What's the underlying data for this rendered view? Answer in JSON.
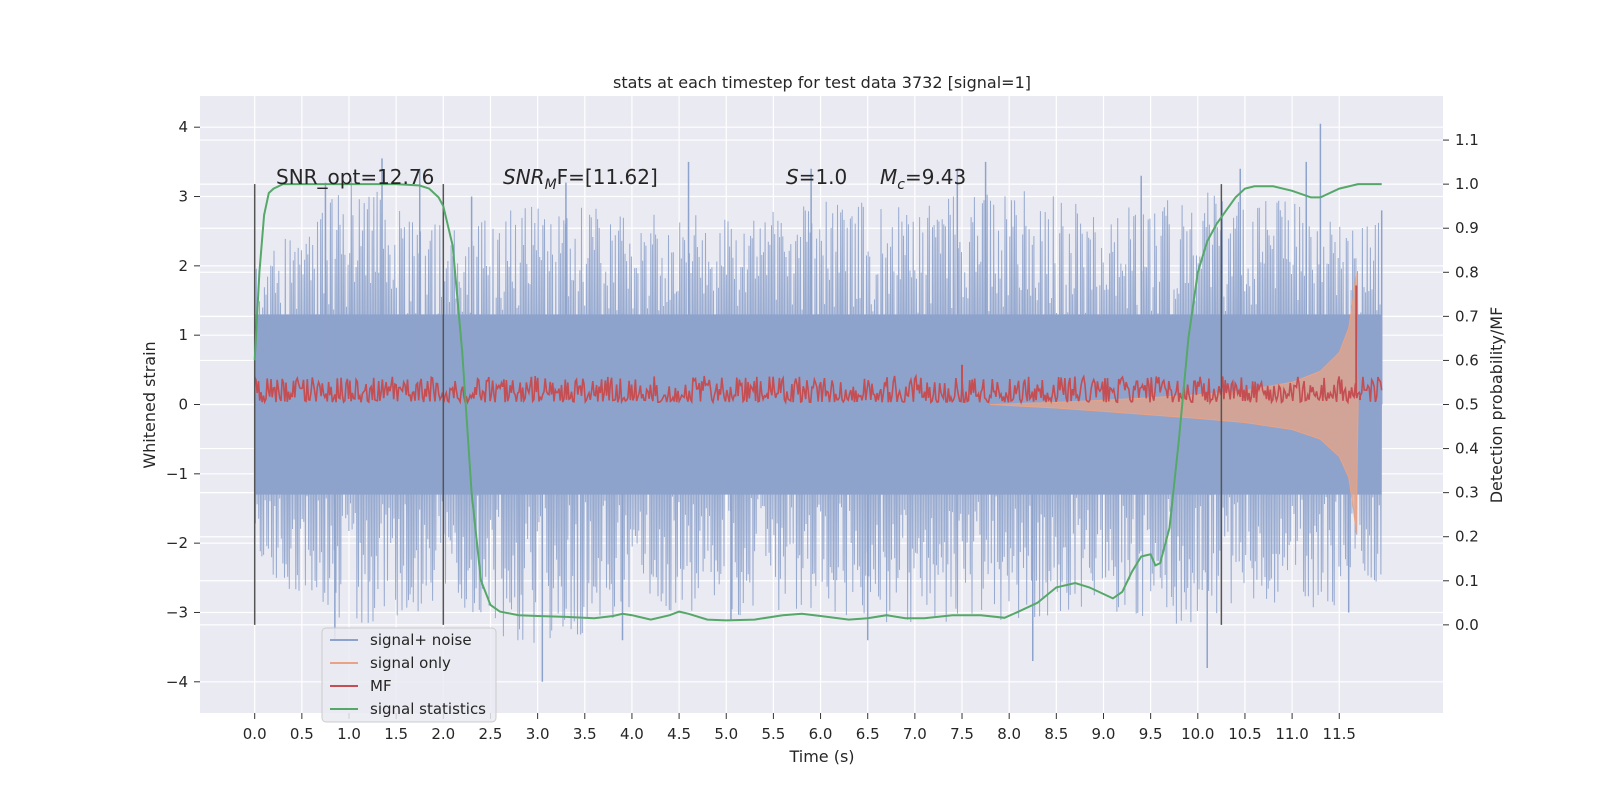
{
  "chart_data": {
    "type": "line",
    "title": "stats at each timestep for test data 3732 [signal=1]",
    "xlabel": "Time (s)",
    "ylabel_left": "Whitened strain",
    "ylabel_right": "Detection probability/MF",
    "xlim": [
      -0.58,
      12.6
    ],
    "ylim_left": [
      -4.45,
      4.45
    ],
    "ylim_right": [
      -0.2,
      1.2
    ],
    "x_ticks": [
      0.0,
      0.5,
      1.0,
      1.5,
      2.0,
      2.5,
      3.0,
      3.5,
      4.0,
      4.5,
      5.0,
      5.5,
      6.0,
      6.5,
      7.0,
      7.5,
      8.0,
      8.5,
      9.0,
      9.5,
      10.0,
      10.5,
      11.0,
      11.5
    ],
    "x_tick_labels": [
      "0.0",
      "0.5",
      "1.0",
      "1.5",
      "2.0",
      "2.5",
      "3.0",
      "3.5",
      "4.0",
      "4.5",
      "5.0",
      "5.5",
      "6.0",
      "6.5",
      "7.0",
      "7.5",
      "8.0",
      "8.5",
      "9.0",
      "9.5",
      "10.0",
      "10.5",
      "11.0",
      "11.5"
    ],
    "y_left_ticks": [
      -4,
      -3,
      -2,
      -1,
      0,
      1,
      2,
      3,
      4
    ],
    "y_left_tick_labels": [
      "−4",
      "−3",
      "−2",
      "−1",
      "0",
      "1",
      "2",
      "3",
      "4"
    ],
    "y_right_ticks": [
      0.0,
      0.1,
      0.2,
      0.3,
      0.4,
      0.5,
      0.6,
      0.7,
      0.8,
      0.9,
      1.0,
      1.1
    ],
    "y_right_tick_labels": [
      "0.0",
      "0.1",
      "0.2",
      "0.3",
      "0.4",
      "0.5",
      "0.6",
      "0.7",
      "0.8",
      "0.9",
      "1.0",
      "1.1"
    ],
    "grid": true,
    "legend_position": "lower-left",
    "vlines_x": [
      0.0,
      2.0,
      10.25
    ],
    "annotations": {
      "snr_opt": "SNR_opt=12.76",
      "snr_mf_main": "SNR",
      "snr_mf_sub": "M",
      "snr_mf_rest": "F=[11.62]",
      "s_main": "S",
      "s_rest": "=1.0",
      "mc_main": "M",
      "mc_sub": "c",
      "mc_rest": "=9.43"
    },
    "series": [
      {
        "name": "signal+ noise",
        "axis": "left",
        "color": "#8ea3cc",
        "envelope_x": [
          0.0,
          1.0,
          2.0,
          3.0,
          4.0,
          5.0,
          6.0,
          7.0,
          8.0,
          9.0,
          10.0,
          10.5,
          11.0,
          11.5,
          11.7,
          11.95
        ],
        "upper": [
          2.0,
          3.3,
          2.6,
          2.9,
          2.8,
          2.7,
          3.0,
          2.9,
          3.2,
          2.8,
          3.1,
          2.9,
          3.0,
          2.6,
          2.5,
          2.8
        ],
        "lower": [
          -2.3,
          -3.3,
          -2.9,
          -3.6,
          -3.0,
          -3.1,
          -3.0,
          -3.2,
          -3.1,
          -3.0,
          -3.3,
          -2.8,
          -2.9,
          -3.0,
          -2.6,
          -2.6
        ],
        "spikes": [
          [
            0.75,
            3.2
          ],
          [
            0.85,
            -3.4
          ],
          [
            1.35,
            3.55
          ],
          [
            1.75,
            3.4
          ],
          [
            2.3,
            3.0
          ],
          [
            3.05,
            -4.0
          ],
          [
            3.3,
            3.2
          ],
          [
            3.9,
            -3.4
          ],
          [
            4.6,
            3.5
          ],
          [
            5.05,
            -3.1
          ],
          [
            5.9,
            3.4
          ],
          [
            6.5,
            -3.4
          ],
          [
            7.45,
            3.4
          ],
          [
            7.75,
            3.5
          ],
          [
            8.25,
            -3.7
          ],
          [
            9.4,
            3.3
          ],
          [
            10.1,
            -3.8
          ],
          [
            10.45,
            3.4
          ],
          [
            11.15,
            3.5
          ],
          [
            11.3,
            4.05
          ],
          [
            11.6,
            -3.0
          ],
          [
            11.95,
            2.8
          ]
        ]
      },
      {
        "name": "signal only",
        "axis": "left",
        "color": "#e8a386",
        "x": [
          7.8,
          8.5,
          9.0,
          9.5,
          10.0,
          10.5,
          11.0,
          11.3,
          11.5,
          11.6,
          11.65,
          11.68,
          11.7
        ],
        "upper": [
          0.0,
          0.03,
          0.06,
          0.1,
          0.14,
          0.2,
          0.32,
          0.48,
          0.75,
          1.1,
          1.55,
          1.9,
          0.0
        ],
        "lower": [
          0.0,
          -0.05,
          -0.1,
          -0.15,
          -0.2,
          -0.26,
          -0.36,
          -0.5,
          -0.75,
          -1.05,
          -1.5,
          -1.85,
          0.0
        ]
      },
      {
        "name": "MF",
        "axis": "right",
        "color": "#c44e52",
        "baseline": 0.52,
        "noise_band": [
          0.505,
          0.565
        ],
        "spikes": [
          [
            7.5,
            0.59
          ],
          [
            11.68,
            0.77
          ],
          [
            11.72,
            0.51
          ]
        ]
      },
      {
        "name": "signal statistics",
        "axis": "right",
        "color": "#55a868",
        "x": [
          0.0,
          0.05,
          0.1,
          0.15,
          0.2,
          0.3,
          0.5,
          1.0,
          1.5,
          1.75,
          1.85,
          1.95,
          2.0,
          2.1,
          2.2,
          2.3,
          2.4,
          2.5,
          2.6,
          2.8,
          3.0,
          3.3,
          3.6,
          3.8,
          3.9,
          4.0,
          4.2,
          4.4,
          4.5,
          4.6,
          4.8,
          5.0,
          5.3,
          5.6,
          5.8,
          6.0,
          6.3,
          6.5,
          6.7,
          6.9,
          7.1,
          7.4,
          7.7,
          7.95,
          8.1,
          8.3,
          8.5,
          8.7,
          8.85,
          9.0,
          9.1,
          9.2,
          9.3,
          9.4,
          9.5,
          9.55,
          9.6,
          9.7,
          9.8,
          9.9,
          10.0,
          10.1,
          10.2,
          10.3,
          10.4,
          10.5,
          10.6,
          10.8,
          11.0,
          11.2,
          11.3,
          11.5,
          11.7,
          11.95
        ],
        "y": [
          0.6,
          0.8,
          0.93,
          0.98,
          0.99,
          1.0,
          1.0,
          1.0,
          1.0,
          0.997,
          0.99,
          0.97,
          0.95,
          0.86,
          0.62,
          0.3,
          0.1,
          0.045,
          0.03,
          0.022,
          0.02,
          0.018,
          0.015,
          0.02,
          0.025,
          0.022,
          0.012,
          0.022,
          0.03,
          0.025,
          0.012,
          0.01,
          0.012,
          0.022,
          0.025,
          0.02,
          0.012,
          0.015,
          0.022,
          0.015,
          0.015,
          0.022,
          0.022,
          0.016,
          0.03,
          0.05,
          0.085,
          0.095,
          0.085,
          0.07,
          0.06,
          0.075,
          0.12,
          0.155,
          0.16,
          0.135,
          0.14,
          0.22,
          0.42,
          0.65,
          0.8,
          0.87,
          0.91,
          0.94,
          0.97,
          0.99,
          0.995,
          0.995,
          0.985,
          0.97,
          0.97,
          0.99,
          1.0,
          1.0
        ]
      }
    ]
  }
}
